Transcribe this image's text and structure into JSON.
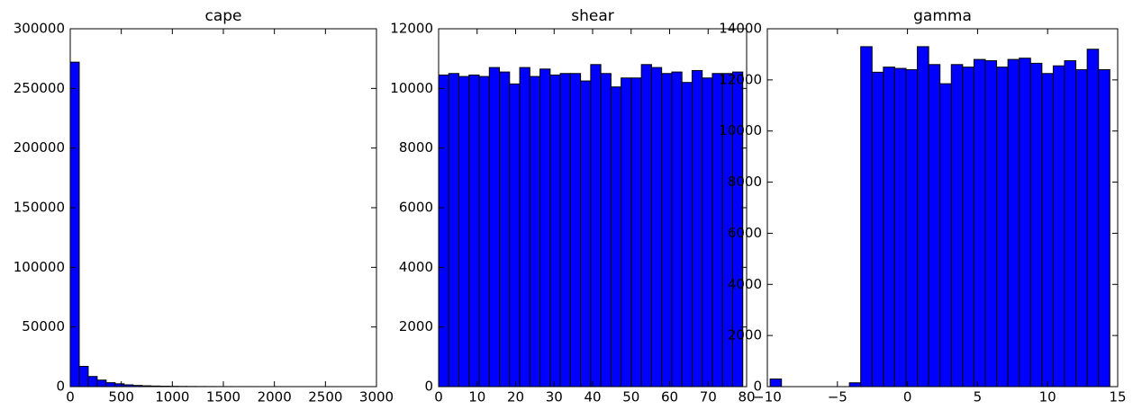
{
  "chart_data": [
    {
      "type": "histogram",
      "title": "cape",
      "color": "#0000ff",
      "bins": [
        0,
        88,
        176,
        264,
        352,
        440,
        528,
        616,
        704,
        792,
        880,
        968,
        1056,
        1144,
        1232,
        1320,
        1408,
        1496,
        1584,
        1672,
        1760,
        1848,
        1936,
        2024,
        2112,
        2200,
        2288,
        2376,
        2464,
        2552,
        2640
      ],
      "values": [
        272000,
        17000,
        8500,
        5500,
        3300,
        2400,
        1500,
        1000,
        700,
        500,
        350,
        250,
        180,
        130,
        100,
        80,
        60,
        45,
        35,
        25,
        20,
        15,
        12,
        10,
        8,
        6,
        5,
        4,
        3,
        2
      ],
      "xlim": [
        0,
        3000
      ],
      "xticks": [
        0,
        500,
        1000,
        1500,
        2000,
        2500,
        3000
      ],
      "ylim": [
        0,
        300000
      ],
      "yticks": [
        0,
        50000,
        100000,
        150000,
        200000,
        250000,
        300000
      ]
    },
    {
      "type": "histogram",
      "title": "shear",
      "color": "#0000ff",
      "bins": [
        0,
        2.633,
        5.267,
        7.9,
        10.533,
        13.167,
        15.8,
        18.433,
        21.067,
        23.7,
        26.333,
        28.967,
        31.6,
        34.233,
        36.867,
        39.5,
        42.133,
        44.767,
        47.4,
        50.033,
        52.667,
        55.3,
        57.933,
        60.567,
        63.2,
        65.833,
        68.467,
        71.1,
        73.733,
        76.367,
        79
      ],
      "values": [
        10450,
        10500,
        10400,
        10450,
        10400,
        10700,
        10550,
        10150,
        10700,
        10400,
        10650,
        10450,
        10500,
        10500,
        10250,
        10800,
        10500,
        10050,
        10350,
        10350,
        10800,
        10700,
        10500,
        10550,
        10200,
        10600,
        10350,
        10500,
        10500,
        10550
      ],
      "xlim": [
        0,
        80
      ],
      "xticks": [
        0,
        10,
        20,
        30,
        40,
        50,
        60,
        70,
        80
      ],
      "ylim": [
        0,
        12000
      ],
      "yticks": [
        0,
        2000,
        4000,
        6000,
        8000,
        10000,
        12000
      ]
    },
    {
      "type": "histogram",
      "title": "gamma",
      "color": "#0000ff",
      "bins": [
        -9.8,
        -8.992,
        -8.184,
        -7.376,
        -6.568,
        -5.76,
        -4.952,
        -4.144,
        -3.336,
        -2.528,
        -1.72,
        -0.912,
        -0.104,
        0.704,
        1.512,
        2.32,
        3.128,
        3.936,
        4.744,
        5.552,
        6.36,
        7.168,
        7.976,
        8.784,
        9.592,
        10.4,
        11.208,
        12.016,
        12.824,
        13.632,
        14.44
      ],
      "values": [
        300,
        0,
        0,
        0,
        0,
        0,
        0,
        150,
        13300,
        12300,
        12500,
        12450,
        12400,
        13300,
        12600,
        11850,
        12600,
        12500,
        12800,
        12750,
        12500,
        12800,
        12850,
        12650,
        12250,
        12550,
        12750,
        12400,
        13200,
        12400
      ],
      "xlim": [
        -10,
        15
      ],
      "xticks": [
        {
          "value": -10,
          "label": "−10"
        },
        {
          "value": -5,
          "label": "−5"
        },
        0,
        5,
        10,
        15
      ],
      "ylim": [
        0,
        14000
      ],
      "yticks": [
        0,
        2000,
        4000,
        6000,
        8000,
        10000,
        12000,
        14000
      ]
    }
  ]
}
